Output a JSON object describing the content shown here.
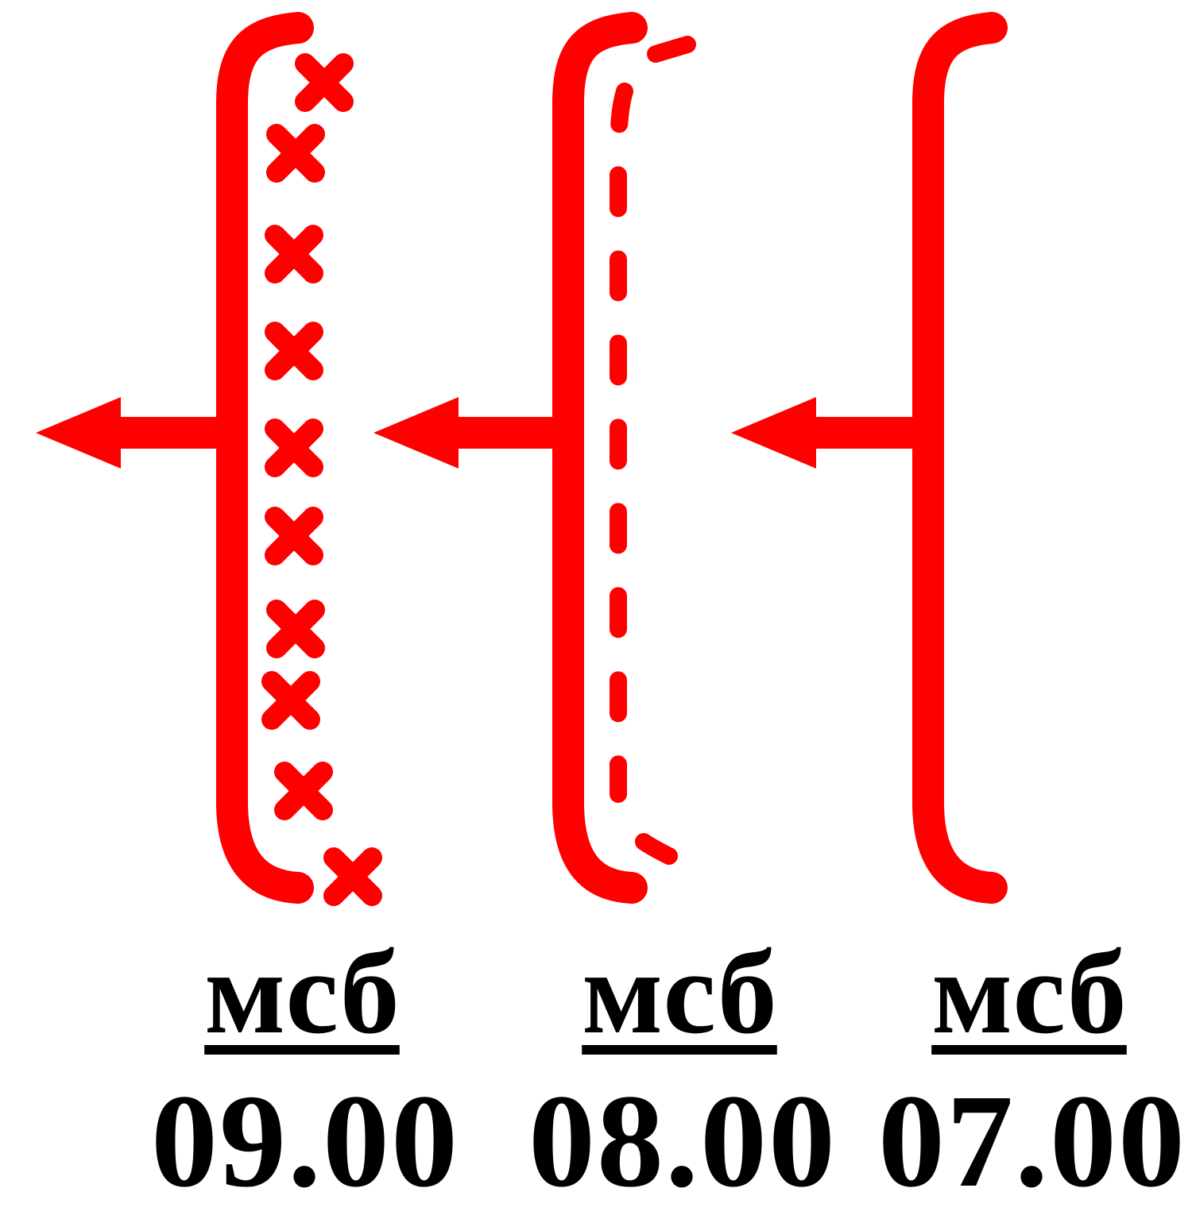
{
  "diagram": {
    "color": "#ff0000",
    "text_color": "#000000",
    "symbols": [
      {
        "id": "front-0900",
        "icon": "occluded-front-symbol",
        "line_style": "crosses",
        "unit": "мсб",
        "time": "09.00"
      },
      {
        "id": "front-0800",
        "icon": "dashed-front-symbol",
        "line_style": "dashed",
        "unit": "мсб",
        "time": "08.00"
      },
      {
        "id": "front-0700",
        "icon": "solid-front-symbol",
        "line_style": "none",
        "unit": "мсб",
        "time": "07.00"
      }
    ]
  }
}
